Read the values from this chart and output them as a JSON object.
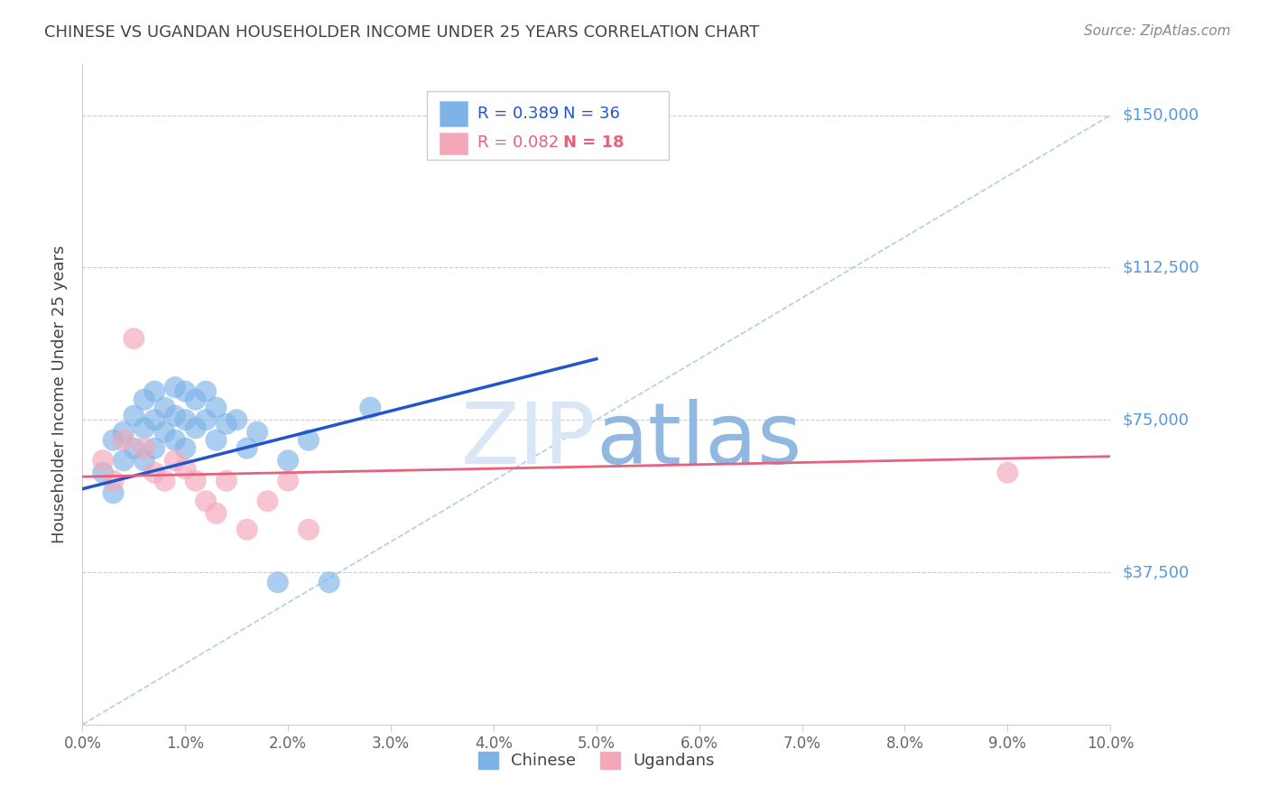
{
  "title": "CHINESE VS UGANDAN HOUSEHOLDER INCOME UNDER 25 YEARS CORRELATION CHART",
  "source": "Source: ZipAtlas.com",
  "ylabel": "Householder Income Under 25 years",
  "y_ticks": [
    0,
    37500,
    75000,
    112500,
    150000
  ],
  "y_tick_labels": [
    "",
    "$37,500",
    "$75,000",
    "$112,500",
    "$150,000"
  ],
  "x_min": 0.0,
  "x_max": 0.1,
  "y_min": 0,
  "y_max": 162500,
  "chinese_color": "#7EB3E8",
  "ugandan_color": "#F4A7B9",
  "chinese_line_color": "#2255CC",
  "ugandan_line_color": "#E8607A",
  "dashed_line_color": "#A8C8E8",
  "watermark_zip_color": "#D8E6F5",
  "watermark_atlas_color": "#90B8E0",
  "title_color": "#444444",
  "ytick_color": "#5599DD",
  "background_color": "#FFFFFF",
  "chinese_scatter_x": [
    0.002,
    0.003,
    0.003,
    0.004,
    0.004,
    0.005,
    0.005,
    0.006,
    0.006,
    0.006,
    0.007,
    0.007,
    0.007,
    0.008,
    0.008,
    0.009,
    0.009,
    0.009,
    0.01,
    0.01,
    0.01,
    0.011,
    0.011,
    0.012,
    0.012,
    0.013,
    0.013,
    0.014,
    0.015,
    0.016,
    0.017,
    0.019,
    0.02,
    0.022,
    0.024,
    0.028
  ],
  "chinese_scatter_y": [
    62000,
    57000,
    70000,
    65000,
    72000,
    68000,
    76000,
    73000,
    65000,
    80000,
    82000,
    75000,
    68000,
    78000,
    72000,
    83000,
    76000,
    70000,
    82000,
    75000,
    68000,
    80000,
    73000,
    82000,
    75000,
    78000,
    70000,
    74000,
    75000,
    68000,
    72000,
    35000,
    65000,
    70000,
    35000,
    78000
  ],
  "ugandan_scatter_x": [
    0.002,
    0.003,
    0.004,
    0.005,
    0.006,
    0.007,
    0.008,
    0.009,
    0.01,
    0.011,
    0.012,
    0.013,
    0.014,
    0.016,
    0.018,
    0.02,
    0.022,
    0.09
  ],
  "ugandan_scatter_y": [
    65000,
    60000,
    70000,
    95000,
    68000,
    62000,
    60000,
    65000,
    63000,
    60000,
    55000,
    52000,
    60000,
    48000,
    55000,
    60000,
    48000,
    62000
  ],
  "chinese_trend_x": [
    0.0,
    0.05
  ],
  "chinese_trend_y": [
    58000,
    90000
  ],
  "ugandan_trend_x": [
    0.0,
    0.1
  ],
  "ugandan_trend_y": [
    61000,
    66000
  ],
  "dashed_line_x": [
    0.0,
    0.1
  ],
  "dashed_line_y": [
    0,
    150000
  ],
  "x_tick_positions": [
    0.0,
    0.01,
    0.02,
    0.03,
    0.04,
    0.05,
    0.06,
    0.07,
    0.08,
    0.09,
    0.1
  ],
  "x_tick_labels": [
    "0.0%",
    "1.0%",
    "2.0%",
    "3.0%",
    "4.0%",
    "5.0%",
    "6.0%",
    "7.0%",
    "8.0%",
    "9.0%",
    "10.0%"
  ]
}
